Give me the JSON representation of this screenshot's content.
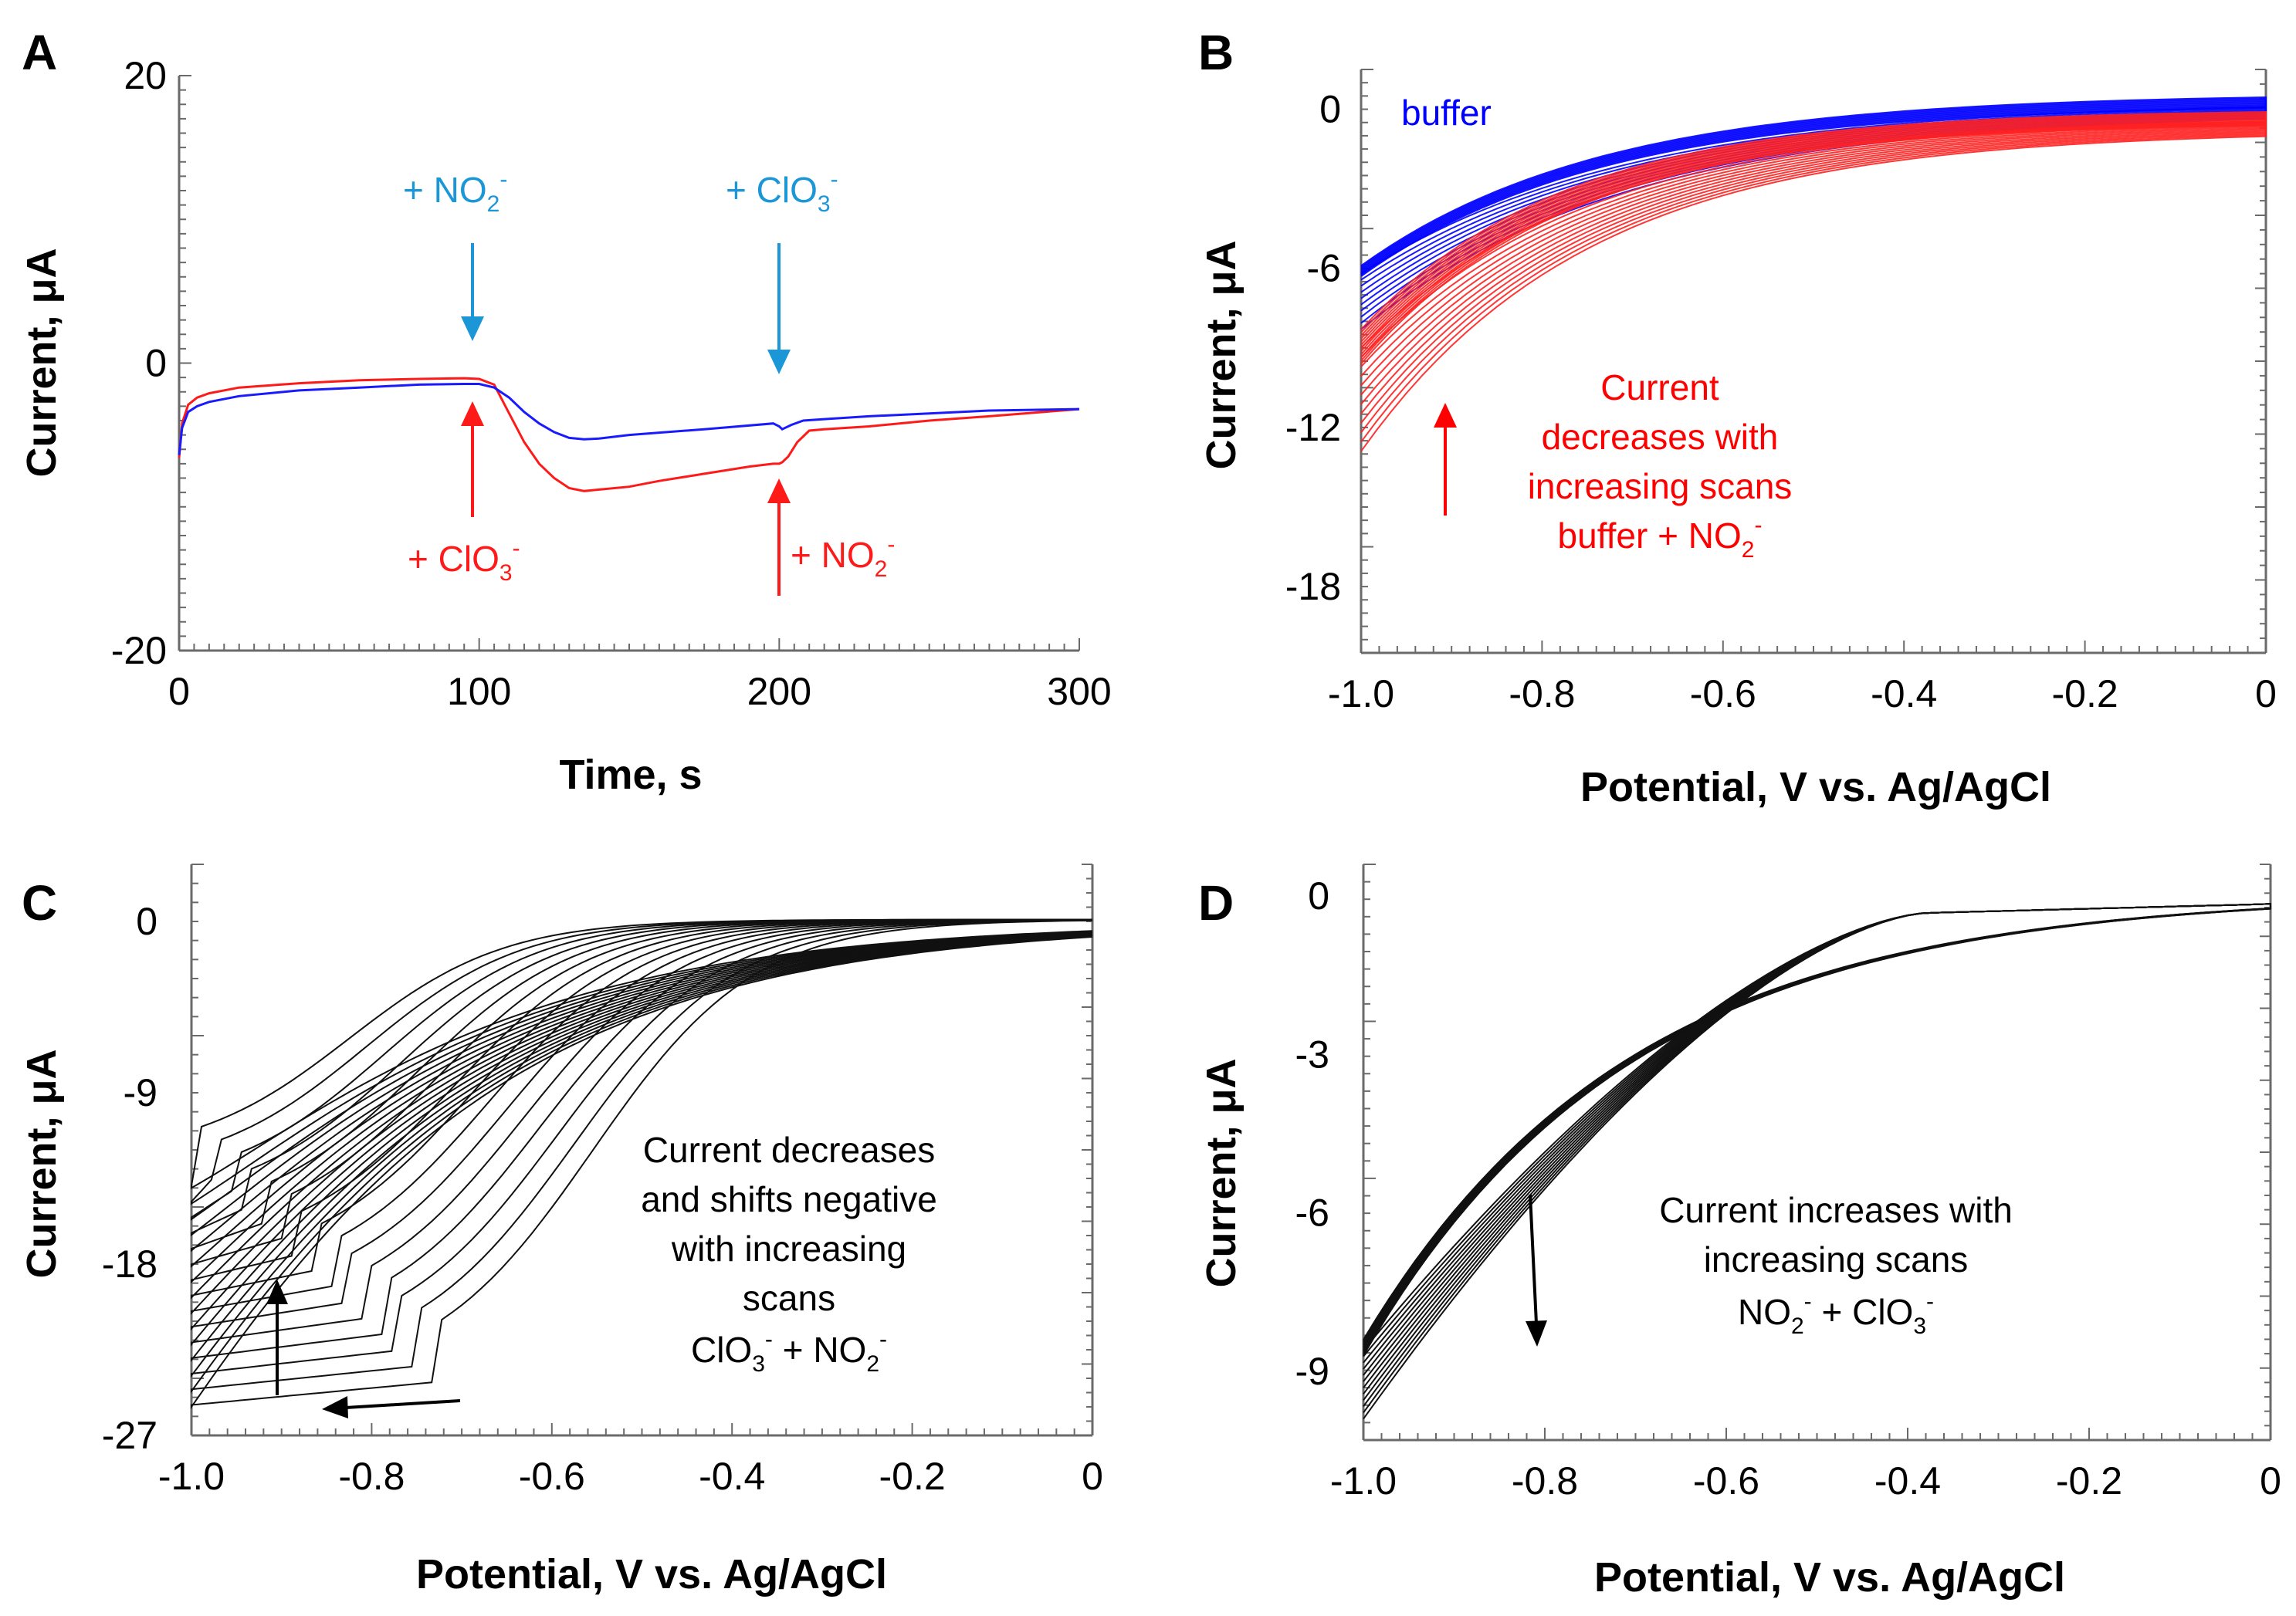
{
  "chart_data": [
    {
      "panel": "A",
      "type": "line",
      "xlabel": "Time, s",
      "ylabel": "Current, μA",
      "xlim": [
        0,
        300
      ],
      "ylim": [
        -20,
        20
      ],
      "xticks": [
        "0",
        "100",
        "200",
        "300"
      ],
      "yticks": [
        "20",
        "0",
        "-20"
      ],
      "series": [
        {
          "name": "ClO3- then NO2-",
          "color": "#ff1a1a",
          "x": [
            0,
            1,
            3,
            6,
            10,
            20,
            40,
            60,
            80,
            95,
            100,
            105,
            110,
            115,
            120,
            125,
            130,
            135,
            140,
            150,
            160,
            175,
            190,
            198,
            200,
            201,
            203,
            206,
            210,
            215,
            230,
            250,
            270,
            300
          ],
          "y": [
            -6.6,
            -4.2,
            -2.9,
            -2.4,
            -2.1,
            -1.7,
            -1.4,
            -1.2,
            -1.1,
            -1.05,
            -1.1,
            -1.5,
            -3.5,
            -5.5,
            -7.0,
            -8.0,
            -8.7,
            -8.9,
            -8.8,
            -8.6,
            -8.2,
            -7.7,
            -7.2,
            -7.0,
            -7.0,
            -6.9,
            -6.5,
            -5.5,
            -4.7,
            -4.6,
            -4.4,
            -4.0,
            -3.7,
            -3.2
          ]
        },
        {
          "name": "NO2- then ClO3-",
          "color": "#1a1aff",
          "x": [
            0,
            1,
            3,
            6,
            10,
            20,
            40,
            60,
            80,
            95,
            100,
            105,
            110,
            115,
            120,
            125,
            130,
            135,
            140,
            150,
            175,
            198,
            200,
            201,
            204,
            208,
            215,
            230,
            250,
            270,
            300
          ],
          "y": [
            -6.4,
            -4.5,
            -3.4,
            -3.0,
            -2.7,
            -2.3,
            -1.9,
            -1.7,
            -1.5,
            -1.45,
            -1.45,
            -1.7,
            -2.4,
            -3.4,
            -4.2,
            -4.8,
            -5.2,
            -5.3,
            -5.25,
            -5.0,
            -4.6,
            -4.2,
            -4.4,
            -4.6,
            -4.3,
            -4.0,
            -3.9,
            -3.7,
            -3.5,
            -3.3,
            -3.2
          ]
        }
      ],
      "annotations": [
        {
          "color": "#1b96d6",
          "base": "+ NO",
          "sub": "2",
          "sup": "-"
        },
        {
          "color": "#1b96d6",
          "base": "+ ClO",
          "sub": "3",
          "sup": "-"
        },
        {
          "color": "#ff1a1a",
          "base": "+ ClO",
          "sub": "3",
          "sup": "-"
        },
        {
          "color": "#ff1a1a",
          "base": "+ NO",
          "sub": "2",
          "sup": "-"
        }
      ]
    },
    {
      "panel": "B",
      "type": "line",
      "xlabel": "Potential, V vs. Ag/AgCl",
      "ylabel": "Current, μA",
      "xlim": [
        -1.0,
        0
      ],
      "ylim": [
        -20.5,
        1.5
      ],
      "xticks": [
        "-1.0",
        "-0.8",
        "-0.6",
        "-0.4",
        "-0.2",
        "0"
      ],
      "yticks": [
        "0",
        "-6",
        "-12",
        "-18"
      ],
      "series": [
        {
          "name": "buffer",
          "color": "#0000ff",
          "scans": 10,
          "cathodic_start": [
            -6.2,
            -8.3
          ],
          "anodic_start": [
            -5.9,
            -6.3
          ],
          "end_current": [
            0.6,
            0.2
          ],
          "decay": 3.6
        },
        {
          "name": "buffer + NO2-",
          "color": "#ff2020",
          "scans": 12,
          "cathodic_start": [
            -9.0,
            -12.9
          ],
          "anodic_start": [
            -8.3,
            -9.6
          ],
          "end_current": [
            0.0,
            -0.5
          ],
          "decay": 4.2
        }
      ],
      "annotations": [
        {
          "color": "#0000ff",
          "text": "buffer"
        },
        {
          "color": "#ff0000",
          "lines": [
            "Current",
            "decreases with",
            "increasing scans"
          ],
          "base": "buffer + NO",
          "sub": "2",
          "sup": "-"
        }
      ]
    },
    {
      "panel": "C",
      "type": "line",
      "xlabel": "Potential, V vs. Ag/AgCl",
      "ylabel": "Current, μA",
      "xlim": [
        -1.0,
        0
      ],
      "ylim": [
        -27,
        3
      ],
      "xticks": [
        "-1.0",
        "-0.8",
        "-0.6",
        "-0.4",
        "-0.2",
        "0"
      ],
      "yticks": [
        "0",
        "-9",
        "-18",
        "-27"
      ],
      "series": [
        {
          "name": "ClO3- + NO2- scans",
          "color": "#111111",
          "scans": 15,
          "onset_potential": [
            -0.38,
            -0.66
          ],
          "peak_potential": [
            -0.73,
            -0.99
          ],
          "peak_current": [
            -24.3,
            -12.5
          ],
          "end_current": [
            -25.5,
            -14.0
          ]
        }
      ],
      "annotations": [
        {
          "color": "#000000",
          "lines": [
            "Current decreases",
            "and shifts negative",
            "with increasing",
            "scans"
          ],
          "base1": "ClO",
          "sub1": "3",
          "sup1": "-",
          "mid": " + NO",
          "sub2": "2",
          "sup2": "-"
        }
      ]
    },
    {
      "panel": "D",
      "type": "line",
      "xlabel": "Potential, V vs. Ag/AgCl",
      "ylabel": "Current, μA",
      "xlim": [
        -1.0,
        0
      ],
      "ylim": [
        -10.3,
        0.6
      ],
      "xticks": [
        "-1.0",
        "-0.8",
        "-0.6",
        "-0.4",
        "-0.2",
        "0"
      ],
      "yticks": [
        "0",
        "-3",
        "-6",
        "-9"
      ],
      "series": [
        {
          "name": "NO2- + ClO3- scans",
          "color": "#111111",
          "scans": 12,
          "cathodic_start": [
            -8.6,
            -9.9
          ],
          "end_current": [
            0.05,
            0.05
          ]
        }
      ],
      "annotations": [
        {
          "color": "#000000",
          "lines": [
            "Current increases with",
            "increasing scans"
          ],
          "base1": "NO",
          "sub1": "2",
          "sup1": "-",
          "mid": " + ClO",
          "sub2": "3",
          "sup2": "-"
        }
      ]
    }
  ]
}
